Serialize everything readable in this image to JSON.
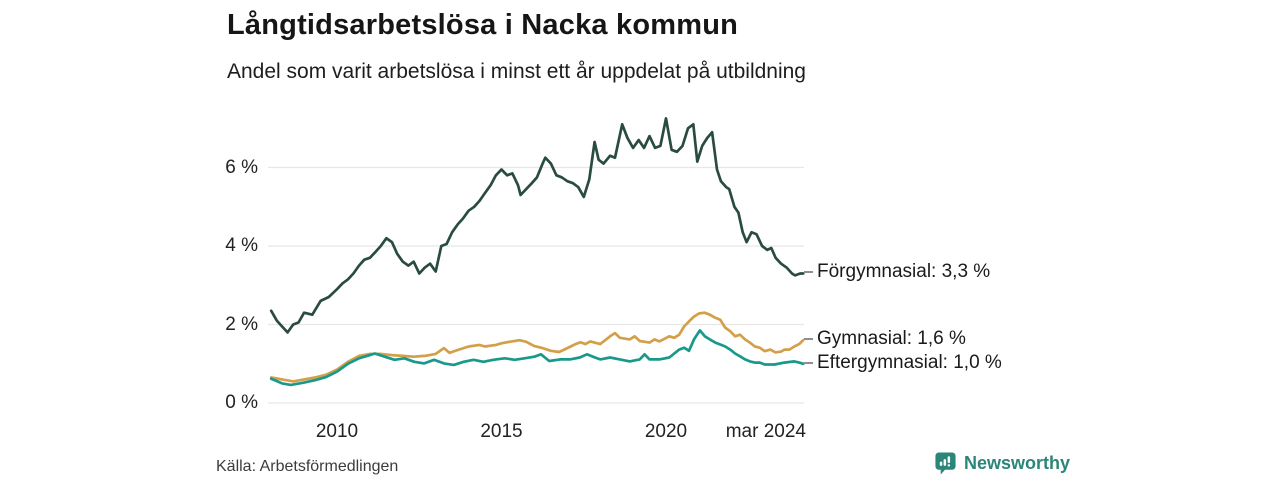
{
  "header": {
    "title": "Långtidsarbetslösa i Nacka kommun",
    "subtitle": "Andel som varit arbetslösa i minst ett år uppdelat på utbildning"
  },
  "footer": {
    "source": "Källa: Arbetsförmedlingen",
    "brand_name": "Newsworthy",
    "brand_color": "#2b8578",
    "brand_icon": "speech-bubble-bar-chart-icon"
  },
  "colors": {
    "grid": "#e7e7e5",
    "axis_text": "#222222",
    "label_text": "#1a1a1a",
    "connector": "#8f8f8f"
  },
  "chart_data": {
    "type": "line",
    "title": "Långtidsarbetslösa i Nacka kommun",
    "subtitle": "Andel som varit arbetslösa i minst ett år uppdelat på utbildning",
    "xlabel": "",
    "ylabel": "%",
    "grid": "horizontal",
    "legend_position": "right-of-line-ends",
    "xlim": [
      2008,
      2024.25
    ],
    "ylim": [
      0,
      7.6
    ],
    "y_ticks": [
      {
        "value": 0,
        "label": "0 %"
      },
      {
        "value": 2,
        "label": "2 %"
      },
      {
        "value": 4,
        "label": "4 %"
      },
      {
        "value": 6,
        "label": "6 %"
      }
    ],
    "x_ticks": [
      {
        "year": 2010,
        "label": "2010"
      },
      {
        "year": 2015,
        "label": "2015"
      },
      {
        "year": 2020,
        "label": "2020"
      },
      {
        "year": 2024.17,
        "label": "mar 2024",
        "align": "right"
      }
    ],
    "series": [
      {
        "name": "Förgymnasial",
        "end_label": "Förgymnasial: 3,3 %",
        "end_value": 3.3,
        "color": "#2a4c40",
        "points": [
          [
            2008.0,
            2.35
          ],
          [
            2008.17,
            2.1
          ],
          [
            2008.33,
            1.95
          ],
          [
            2008.5,
            1.8
          ],
          [
            2008.67,
            2.0
          ],
          [
            2008.83,
            2.05
          ],
          [
            2009.0,
            2.3
          ],
          [
            2009.25,
            2.25
          ],
          [
            2009.5,
            2.6
          ],
          [
            2009.75,
            2.7
          ],
          [
            2010.0,
            2.9
          ],
          [
            2010.17,
            3.05
          ],
          [
            2010.33,
            3.15
          ],
          [
            2010.5,
            3.3
          ],
          [
            2010.67,
            3.5
          ],
          [
            2010.83,
            3.65
          ],
          [
            2011.0,
            3.7
          ],
          [
            2011.17,
            3.85
          ],
          [
            2011.33,
            4.0
          ],
          [
            2011.5,
            4.2
          ],
          [
            2011.67,
            4.1
          ],
          [
            2011.83,
            3.8
          ],
          [
            2012.0,
            3.6
          ],
          [
            2012.17,
            3.5
          ],
          [
            2012.33,
            3.6
          ],
          [
            2012.5,
            3.3
          ],
          [
            2012.67,
            3.45
          ],
          [
            2012.83,
            3.55
          ],
          [
            2013.0,
            3.35
          ],
          [
            2013.17,
            4.0
          ],
          [
            2013.33,
            4.05
          ],
          [
            2013.5,
            4.35
          ],
          [
            2013.67,
            4.55
          ],
          [
            2013.83,
            4.7
          ],
          [
            2014.0,
            4.9
          ],
          [
            2014.17,
            5.0
          ],
          [
            2014.33,
            5.15
          ],
          [
            2014.5,
            5.35
          ],
          [
            2014.67,
            5.55
          ],
          [
            2014.83,
            5.8
          ],
          [
            2015.0,
            5.95
          ],
          [
            2015.17,
            5.8
          ],
          [
            2015.33,
            5.85
          ],
          [
            2015.5,
            5.55
          ],
          [
            2015.58,
            5.3
          ],
          [
            2015.75,
            5.45
          ],
          [
            2015.92,
            5.6
          ],
          [
            2016.08,
            5.75
          ],
          [
            2016.25,
            6.1
          ],
          [
            2016.33,
            6.25
          ],
          [
            2016.5,
            6.1
          ],
          [
            2016.67,
            5.8
          ],
          [
            2016.83,
            5.75
          ],
          [
            2017.0,
            5.65
          ],
          [
            2017.17,
            5.6
          ],
          [
            2017.33,
            5.5
          ],
          [
            2017.5,
            5.25
          ],
          [
            2017.67,
            5.7
          ],
          [
            2017.83,
            6.65
          ],
          [
            2017.95,
            6.2
          ],
          [
            2018.1,
            6.1
          ],
          [
            2018.3,
            6.3
          ],
          [
            2018.45,
            6.25
          ],
          [
            2018.67,
            7.1
          ],
          [
            2018.83,
            6.75
          ],
          [
            2019.0,
            6.5
          ],
          [
            2019.17,
            6.7
          ],
          [
            2019.33,
            6.5
          ],
          [
            2019.5,
            6.8
          ],
          [
            2019.67,
            6.5
          ],
          [
            2019.83,
            6.55
          ],
          [
            2020.0,
            7.25
          ],
          [
            2020.17,
            6.45
          ],
          [
            2020.33,
            6.4
          ],
          [
            2020.5,
            6.55
          ],
          [
            2020.67,
            7.0
          ],
          [
            2020.83,
            7.1
          ],
          [
            2020.95,
            6.15
          ],
          [
            2021.1,
            6.55
          ],
          [
            2021.25,
            6.75
          ],
          [
            2021.4,
            6.9
          ],
          [
            2021.55,
            5.95
          ],
          [
            2021.67,
            5.65
          ],
          [
            2021.83,
            5.5
          ],
          [
            2021.92,
            5.45
          ],
          [
            2022.08,
            5.0
          ],
          [
            2022.2,
            4.85
          ],
          [
            2022.33,
            4.35
          ],
          [
            2022.45,
            4.1
          ],
          [
            2022.6,
            4.35
          ],
          [
            2022.75,
            4.3
          ],
          [
            2022.92,
            4.0
          ],
          [
            2023.08,
            3.9
          ],
          [
            2023.2,
            3.95
          ],
          [
            2023.33,
            3.7
          ],
          [
            2023.5,
            3.55
          ],
          [
            2023.67,
            3.45
          ],
          [
            2023.83,
            3.3
          ],
          [
            2023.92,
            3.25
          ],
          [
            2024.08,
            3.3
          ],
          [
            2024.17,
            3.3
          ]
        ]
      },
      {
        "name": "Gymnasial",
        "end_label": "Gymnasial: 1,6 %",
        "end_value": 1.6,
        "color": "#d3a049",
        "points": [
          [
            2008.0,
            0.65
          ],
          [
            2008.33,
            0.6
          ],
          [
            2008.67,
            0.55
          ],
          [
            2009.0,
            0.6
          ],
          [
            2009.33,
            0.65
          ],
          [
            2009.67,
            0.72
          ],
          [
            2010.0,
            0.85
          ],
          [
            2010.33,
            1.05
          ],
          [
            2010.67,
            1.2
          ],
          [
            2011.0,
            1.25
          ],
          [
            2011.33,
            1.25
          ],
          [
            2011.67,
            1.22
          ],
          [
            2012.0,
            1.2
          ],
          [
            2012.33,
            1.18
          ],
          [
            2012.67,
            1.2
          ],
          [
            2013.0,
            1.25
          ],
          [
            2013.25,
            1.4
          ],
          [
            2013.42,
            1.28
          ],
          [
            2013.67,
            1.35
          ],
          [
            2014.0,
            1.44
          ],
          [
            2014.33,
            1.48
          ],
          [
            2014.5,
            1.44
          ],
          [
            2014.83,
            1.48
          ],
          [
            2015.0,
            1.52
          ],
          [
            2015.25,
            1.56
          ],
          [
            2015.55,
            1.6
          ],
          [
            2015.75,
            1.56
          ],
          [
            2016.0,
            1.45
          ],
          [
            2016.25,
            1.4
          ],
          [
            2016.5,
            1.33
          ],
          [
            2016.75,
            1.3
          ],
          [
            2017.0,
            1.4
          ],
          [
            2017.25,
            1.5
          ],
          [
            2017.4,
            1.55
          ],
          [
            2017.55,
            1.5
          ],
          [
            2017.7,
            1.57
          ],
          [
            2018.0,
            1.5
          ],
          [
            2018.3,
            1.7
          ],
          [
            2018.45,
            1.78
          ],
          [
            2018.6,
            1.66
          ],
          [
            2018.9,
            1.62
          ],
          [
            2019.05,
            1.7
          ],
          [
            2019.2,
            1.58
          ],
          [
            2019.5,
            1.54
          ],
          [
            2019.65,
            1.62
          ],
          [
            2019.8,
            1.57
          ],
          [
            2020.1,
            1.7
          ],
          [
            2020.25,
            1.66
          ],
          [
            2020.4,
            1.74
          ],
          [
            2020.55,
            1.95
          ],
          [
            2020.7,
            2.08
          ],
          [
            2020.85,
            2.2
          ],
          [
            2021.0,
            2.28
          ],
          [
            2021.17,
            2.3
          ],
          [
            2021.33,
            2.25
          ],
          [
            2021.5,
            2.17
          ],
          [
            2021.65,
            2.12
          ],
          [
            2021.8,
            1.92
          ],
          [
            2021.95,
            1.83
          ],
          [
            2022.1,
            1.7
          ],
          [
            2022.25,
            1.74
          ],
          [
            2022.4,
            1.62
          ],
          [
            2022.55,
            1.54
          ],
          [
            2022.7,
            1.44
          ],
          [
            2022.85,
            1.41
          ],
          [
            2023.0,
            1.32
          ],
          [
            2023.17,
            1.36
          ],
          [
            2023.33,
            1.29
          ],
          [
            2023.5,
            1.31
          ],
          [
            2023.6,
            1.36
          ],
          [
            2023.75,
            1.36
          ],
          [
            2023.9,
            1.44
          ],
          [
            2024.05,
            1.5
          ],
          [
            2024.17,
            1.6
          ]
        ]
      },
      {
        "name": "Eftergymnasial",
        "end_label": "Eftergymnasial: 1,0 %",
        "end_value": 1.0,
        "color": "#18998b",
        "points": [
          [
            2008.0,
            0.62
          ],
          [
            2008.33,
            0.5
          ],
          [
            2008.6,
            0.46
          ],
          [
            2009.0,
            0.52
          ],
          [
            2009.33,
            0.58
          ],
          [
            2009.67,
            0.66
          ],
          [
            2010.0,
            0.8
          ],
          [
            2010.33,
            1.0
          ],
          [
            2010.67,
            1.14
          ],
          [
            2011.0,
            1.22
          ],
          [
            2011.15,
            1.26
          ],
          [
            2011.45,
            1.18
          ],
          [
            2011.75,
            1.1
          ],
          [
            2012.05,
            1.14
          ],
          [
            2012.35,
            1.05
          ],
          [
            2012.65,
            1.01
          ],
          [
            2012.95,
            1.1
          ],
          [
            2013.25,
            1.01
          ],
          [
            2013.55,
            0.97
          ],
          [
            2013.85,
            1.05
          ],
          [
            2014.15,
            1.1
          ],
          [
            2014.45,
            1.05
          ],
          [
            2014.75,
            1.1
          ],
          [
            2015.1,
            1.14
          ],
          [
            2015.4,
            1.1
          ],
          [
            2015.7,
            1.14
          ],
          [
            2016.0,
            1.18
          ],
          [
            2016.2,
            1.24
          ],
          [
            2016.45,
            1.07
          ],
          [
            2016.78,
            1.11
          ],
          [
            2017.08,
            1.11
          ],
          [
            2017.38,
            1.16
          ],
          [
            2017.6,
            1.24
          ],
          [
            2017.84,
            1.16
          ],
          [
            2018.0,
            1.11
          ],
          [
            2018.3,
            1.16
          ],
          [
            2018.6,
            1.11
          ],
          [
            2018.9,
            1.06
          ],
          [
            2019.2,
            1.11
          ],
          [
            2019.35,
            1.24
          ],
          [
            2019.5,
            1.11
          ],
          [
            2019.8,
            1.11
          ],
          [
            2020.1,
            1.16
          ],
          [
            2020.4,
            1.36
          ],
          [
            2020.55,
            1.41
          ],
          [
            2020.7,
            1.33
          ],
          [
            2020.85,
            1.62
          ],
          [
            2021.03,
            1.85
          ],
          [
            2021.18,
            1.7
          ],
          [
            2021.33,
            1.62
          ],
          [
            2021.5,
            1.54
          ],
          [
            2021.65,
            1.49
          ],
          [
            2021.8,
            1.44
          ],
          [
            2021.95,
            1.36
          ],
          [
            2022.1,
            1.26
          ],
          [
            2022.25,
            1.19
          ],
          [
            2022.4,
            1.11
          ],
          [
            2022.55,
            1.06
          ],
          [
            2022.7,
            1.03
          ],
          [
            2022.85,
            1.03
          ],
          [
            2023.0,
            0.98
          ],
          [
            2023.3,
            0.98
          ],
          [
            2023.6,
            1.03
          ],
          [
            2023.9,
            1.06
          ],
          [
            2024.05,
            1.03
          ],
          [
            2024.17,
            1.0
          ]
        ]
      }
    ]
  }
}
